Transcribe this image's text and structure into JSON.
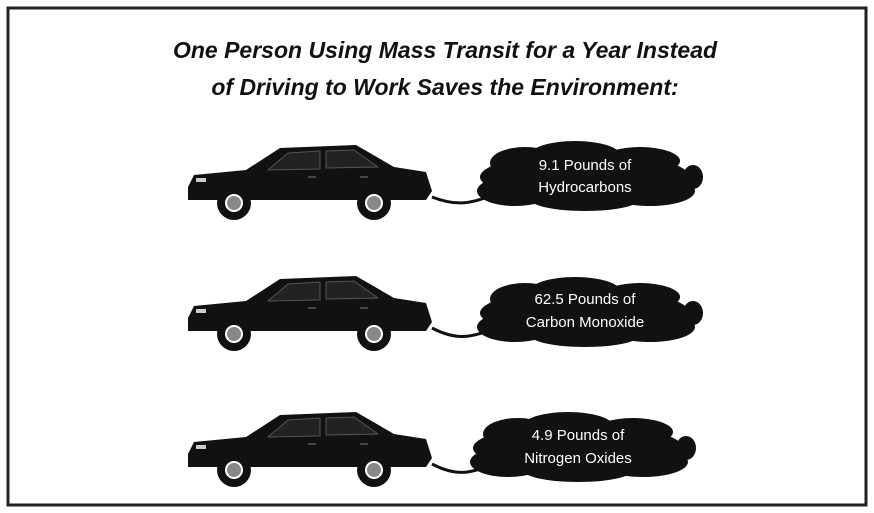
{
  "title": [
    "One Person Using Mass Transit for a Year Instead",
    "of Driving to Work Saves the Environment:"
  ],
  "items": [
    {
      "lines": [
        "9.1 Pounds of",
        "Hydrocarbons"
      ]
    },
    {
      "lines": [
        "62.5 Pounds of",
        "Carbon Monoxide"
      ]
    },
    {
      "lines": [
        "4.9 Pounds of",
        "Nitrogen Oxides"
      ]
    }
  ]
}
